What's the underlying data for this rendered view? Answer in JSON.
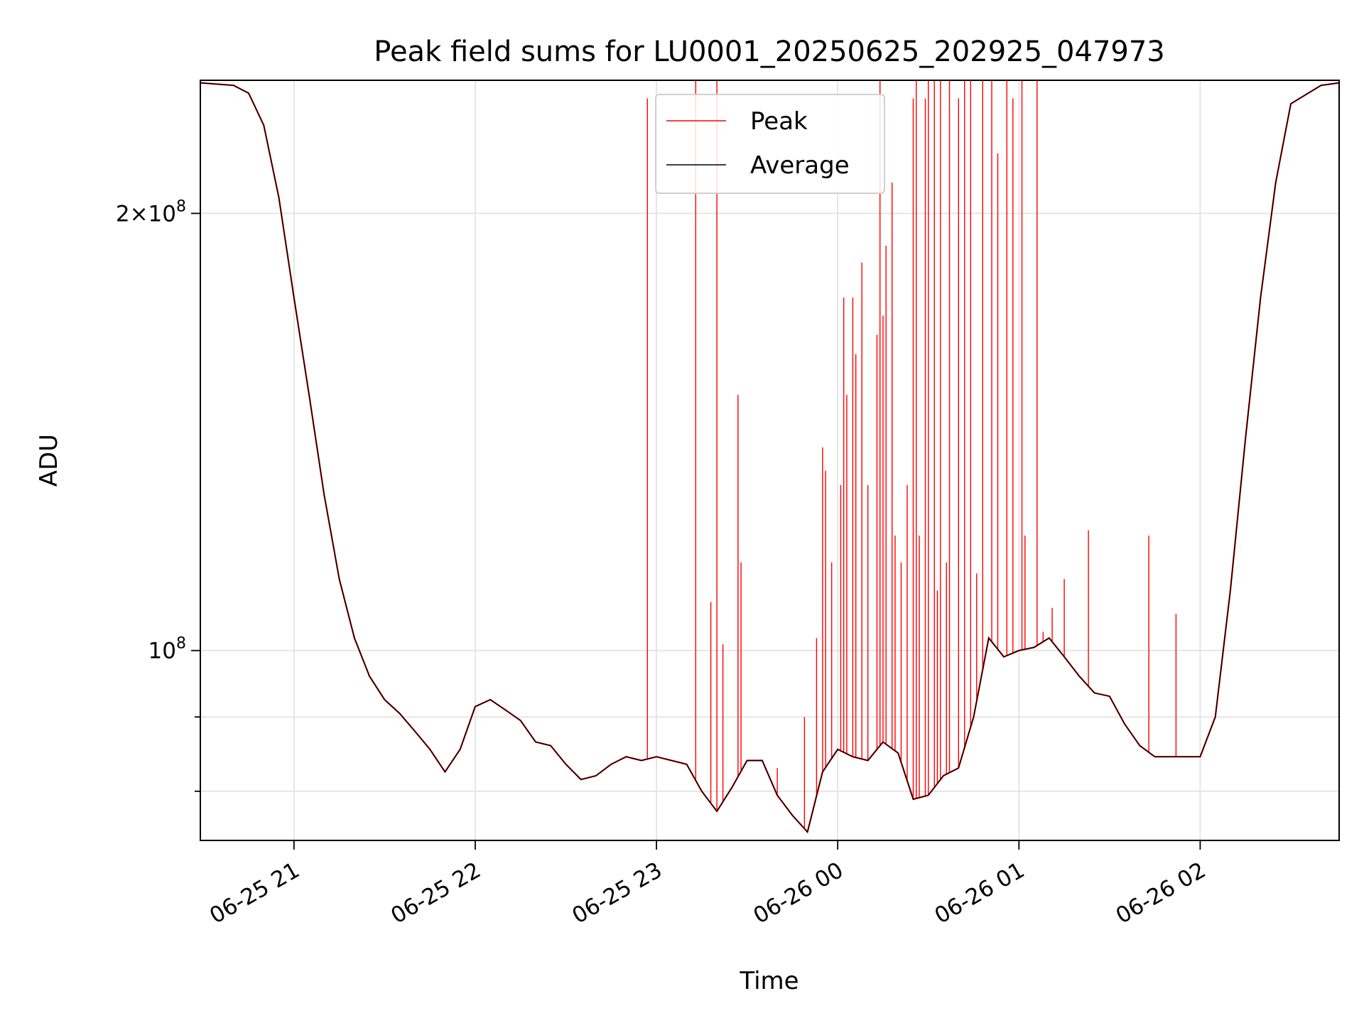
{
  "chart_data": {
    "type": "line",
    "title": "Peak field sums for LU0001_20250625_202925_047973",
    "xlabel": "Time",
    "ylabel": "ADU",
    "yscale": "log",
    "xlim": [
      "2025-06-25 20:29",
      "2025-06-26 02:46"
    ],
    "ylim": [
      74000000,
      247000000
    ],
    "grid": true,
    "legend": {
      "placement": "upper-center",
      "entries": [
        "Peak",
        "Average"
      ]
    },
    "x_ticks": [
      "06-25 21",
      "06-25 22",
      "06-25 23",
      "06-26 00",
      "06-26 01",
      "06-26 02"
    ],
    "y_ticks_major": [
      {
        "base": "10",
        "exp": "8",
        "mantissa": "",
        "value": 100000000
      },
      {
        "base": "10",
        "exp": "8",
        "mantissa": "2",
        "value": 200000000
      }
    ],
    "y_ticks_minor": [
      80000000,
      90000000
    ],
    "series": [
      {
        "name": "Average",
        "color": "#000000",
        "points": [
          [
            "2025-06-25 20:29",
            246
          ],
          [
            "2025-06-25 20:40",
            245
          ],
          [
            "2025-06-25 20:45",
            242
          ],
          [
            "2025-06-25 20:50",
            230
          ],
          [
            "2025-06-25 20:55",
            205
          ],
          [
            "2025-06-25 21:00",
            175
          ],
          [
            "2025-06-25 21:05",
            150
          ],
          [
            "2025-06-25 21:10",
            128
          ],
          [
            "2025-06-25 21:15",
            112
          ],
          [
            "2025-06-25 21:20",
            102
          ],
          [
            "2025-06-25 21:25",
            96
          ],
          [
            "2025-06-25 21:30",
            92.5
          ],
          [
            "2025-06-25 21:35",
            90.5
          ],
          [
            "2025-06-25 21:40",
            88
          ],
          [
            "2025-06-25 21:45",
            85.5
          ],
          [
            "2025-06-25 21:50",
            82.5
          ],
          [
            "2025-06-25 21:55",
            85.5
          ],
          [
            "2025-06-25 22:00",
            91.5
          ],
          [
            "2025-06-25 22:05",
            92.5
          ],
          [
            "2025-06-25 22:10",
            91
          ],
          [
            "2025-06-25 22:15",
            89.5
          ],
          [
            "2025-06-25 22:20",
            86.5
          ],
          [
            "2025-06-25 22:25",
            86
          ],
          [
            "2025-06-25 22:30",
            83.5
          ],
          [
            "2025-06-25 22:35",
            81.5
          ],
          [
            "2025-06-25 22:40",
            82
          ],
          [
            "2025-06-25 22:45",
            83.5
          ],
          [
            "2025-06-25 22:50",
            84.5
          ],
          [
            "2025-06-25 22:55",
            84
          ],
          [
            "2025-06-25 23:00",
            84.5
          ],
          [
            "2025-06-25 23:05",
            84
          ],
          [
            "2025-06-25 23:10",
            83.5
          ],
          [
            "2025-06-25 23:15",
            80
          ],
          [
            "2025-06-25 23:20",
            77.5
          ],
          [
            "2025-06-25 23:25",
            80.5
          ],
          [
            "2025-06-25 23:30",
            84
          ],
          [
            "2025-06-25 23:35",
            84
          ],
          [
            "2025-06-25 23:40",
            79.5
          ],
          [
            "2025-06-25 23:45",
            77
          ],
          [
            "2025-06-25 23:50",
            75
          ],
          [
            "2025-06-25 23:55",
            82.5
          ],
          [
            "2025-06-26 00:00",
            85.5
          ],
          [
            "2025-06-26 00:05",
            84.5
          ],
          [
            "2025-06-26 00:10",
            84
          ],
          [
            "2025-06-26 00:15",
            86.5
          ],
          [
            "2025-06-26 00:20",
            85
          ],
          [
            "2025-06-26 00:25",
            79
          ],
          [
            "2025-06-26 00:30",
            79.5
          ],
          [
            "2025-06-26 00:35",
            82
          ],
          [
            "2025-06-26 00:40",
            83
          ],
          [
            "2025-06-26 00:45",
            90
          ],
          [
            "2025-06-26 00:50",
            102
          ],
          [
            "2025-06-26 00:55",
            99
          ],
          [
            "2025-06-26 01:00",
            100
          ],
          [
            "2025-06-26 01:05",
            100.5
          ],
          [
            "2025-06-26 01:10",
            102
          ],
          [
            "2025-06-26 01:15",
            99
          ],
          [
            "2025-06-26 01:20",
            96
          ],
          [
            "2025-06-26 01:25",
            93.5
          ],
          [
            "2025-06-26 01:30",
            93
          ],
          [
            "2025-06-26 01:35",
            89
          ],
          [
            "2025-06-26 01:40",
            86
          ],
          [
            "2025-06-26 01:45",
            84.5
          ],
          [
            "2025-06-26 01:50",
            84.5
          ],
          [
            "2025-06-26 01:55",
            84.5
          ],
          [
            "2025-06-26 02:00",
            84.5
          ],
          [
            "2025-06-26 02:05",
            90
          ],
          [
            "2025-06-26 02:10",
            110
          ],
          [
            "2025-06-26 02:15",
            140
          ],
          [
            "2025-06-26 02:20",
            175
          ],
          [
            "2025-06-26 02:25",
            210
          ],
          [
            "2025-06-26 02:30",
            238
          ],
          [
            "2025-06-26 02:40",
            245
          ],
          [
            "2025-06-26 02:46",
            246
          ]
        ]
      },
      {
        "name": "Peak",
        "color": "#ff0000",
        "spikes": [
          [
            "2025-06-25 22:57",
            240
          ],
          [
            "2025-06-25 23:13",
            247
          ],
          [
            "2025-06-25 23:18",
            108
          ],
          [
            "2025-06-25 23:20",
            247
          ],
          [
            "2025-06-25 23:22",
            101
          ],
          [
            "2025-06-25 23:27",
            150
          ],
          [
            "2025-06-25 23:28",
            115
          ],
          [
            "2025-06-25 23:40",
            83
          ],
          [
            "2025-06-25 23:49",
            90
          ],
          [
            "2025-06-25 23:53",
            102
          ],
          [
            "2025-06-25 23:55",
            138
          ],
          [
            "2025-06-25 23:56",
            133
          ],
          [
            "2025-06-25 23:58",
            115
          ],
          [
            "2025-06-26 00:01",
            130
          ],
          [
            "2025-06-26 00:02",
            175
          ],
          [
            "2025-06-26 00:03",
            150
          ],
          [
            "2025-06-26 00:05",
            175
          ],
          [
            "2025-06-26 00:06",
            160
          ],
          [
            "2025-06-26 00:08",
            185
          ],
          [
            "2025-06-26 00:10",
            130
          ],
          [
            "2025-06-26 00:13",
            165
          ],
          [
            "2025-06-26 00:14",
            247
          ],
          [
            "2025-06-26 00:15",
            170
          ],
          [
            "2025-06-26 00:16",
            190
          ],
          [
            "2025-06-26 00:18",
            210
          ],
          [
            "2025-06-26 00:19",
            120
          ],
          [
            "2025-06-26 00:21",
            115
          ],
          [
            "2025-06-26 00:23",
            130
          ],
          [
            "2025-06-26 00:25",
            240
          ],
          [
            "2025-06-26 00:26",
            247
          ],
          [
            "2025-06-26 00:27",
            120
          ],
          [
            "2025-06-26 00:29",
            240
          ],
          [
            "2025-06-26 00:30",
            247
          ],
          [
            "2025-06-26 00:32",
            247
          ],
          [
            "2025-06-26 00:33",
            110
          ],
          [
            "2025-06-26 00:34",
            247
          ],
          [
            "2025-06-26 00:36",
            115
          ],
          [
            "2025-06-26 00:37",
            247
          ],
          [
            "2025-06-26 00:40",
            240
          ],
          [
            "2025-06-26 00:42",
            247
          ],
          [
            "2025-06-26 00:44",
            247
          ],
          [
            "2025-06-26 00:46",
            113
          ],
          [
            "2025-06-26 00:48",
            247
          ],
          [
            "2025-06-26 00:51",
            247
          ],
          [
            "2025-06-26 00:53",
            220
          ],
          [
            "2025-06-26 00:56",
            247
          ],
          [
            "2025-06-26 00:58",
            240
          ],
          [
            "2025-06-26 01:01",
            247
          ],
          [
            "2025-06-26 01:02",
            120
          ],
          [
            "2025-06-26 01:06",
            247
          ],
          [
            "2025-06-26 01:08",
            103
          ],
          [
            "2025-06-26 01:11",
            107
          ],
          [
            "2025-06-26 01:15",
            112
          ],
          [
            "2025-06-26 01:23",
            121
          ],
          [
            "2025-06-26 01:43",
            120
          ],
          [
            "2025-06-26 01:52",
            106
          ]
        ]
      }
    ]
  }
}
